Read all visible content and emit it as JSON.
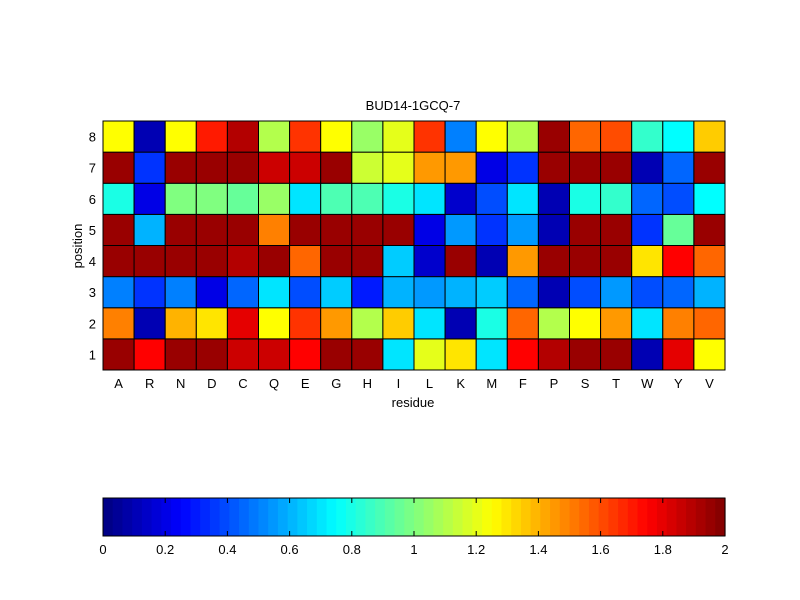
{
  "chart_data": {
    "type": "heatmap",
    "title": "BUD14-1GCQ-7",
    "xlabel": "residue",
    "ylabel": "position",
    "x_categories": [
      "A",
      "R",
      "N",
      "D",
      "C",
      "Q",
      "E",
      "G",
      "H",
      "I",
      "L",
      "K",
      "M",
      "F",
      "P",
      "S",
      "T",
      "W",
      "Y",
      "V"
    ],
    "y_categories": [
      "1",
      "2",
      "3",
      "4",
      "5",
      "6",
      "7",
      "8"
    ],
    "values": [
      [
        1.95,
        1.75,
        1.95,
        1.95,
        1.85,
        1.85,
        1.75,
        1.95,
        1.95,
        0.7,
        1.2,
        1.3,
        0.7,
        1.75,
        1.9,
        1.95,
        1.95,
        0.1,
        1.8,
        1.25
      ],
      [
        1.5,
        0.1,
        1.4,
        1.3,
        1.8,
        1.25,
        1.65,
        1.45,
        1.1,
        1.35,
        0.7,
        0.1,
        0.8,
        1.55,
        1.1,
        1.25,
        1.45,
        0.7,
        1.5,
        1.55
      ],
      [
        0.5,
        0.35,
        0.5,
        0.2,
        0.45,
        0.7,
        0.4,
        0.65,
        0.3,
        0.6,
        0.55,
        0.6,
        0.65,
        0.45,
        0.1,
        0.4,
        0.55,
        0.4,
        0.45,
        0.6
      ],
      [
        1.95,
        1.95,
        1.95,
        1.95,
        1.9,
        1.95,
        1.55,
        1.95,
        1.95,
        0.65,
        0.15,
        1.95,
        0.1,
        1.45,
        1.95,
        1.95,
        1.95,
        1.3,
        1.75,
        1.55
      ],
      [
        1.95,
        0.6,
        1.95,
        1.95,
        1.95,
        1.5,
        1.95,
        1.95,
        1.95,
        1.95,
        0.2,
        0.55,
        0.35,
        0.55,
        0.1,
        1.95,
        1.95,
        0.35,
        0.95,
        1.95
      ],
      [
        0.8,
        0.2,
        1.0,
        1.0,
        0.95,
        1.05,
        0.7,
        0.9,
        0.9,
        0.8,
        0.7,
        0.15,
        0.4,
        0.7,
        0.1,
        0.8,
        0.85,
        0.45,
        0.4,
        0.75
      ],
      [
        1.95,
        0.35,
        1.95,
        1.95,
        1.95,
        1.85,
        1.85,
        1.95,
        1.15,
        1.2,
        1.45,
        1.45,
        0.2,
        0.35,
        1.95,
        1.95,
        1.95,
        0.1,
        0.45,
        1.95
      ],
      [
        1.25,
        0.1,
        1.25,
        1.7,
        1.9,
        1.1,
        1.65,
        1.25,
        1.05,
        1.2,
        1.65,
        0.5,
        1.25,
        1.1,
        1.95,
        1.55,
        1.6,
        0.85,
        0.75,
        1.35
      ]
    ],
    "colorbar": {
      "colormap": "jet",
      "range": [
        0,
        2
      ],
      "ticks": [
        "0",
        "0.2",
        "0.4",
        "0.6",
        "0.8",
        "1",
        "1.2",
        "1.4",
        "1.6",
        "1.8",
        "2"
      ]
    },
    "grid": false
  }
}
